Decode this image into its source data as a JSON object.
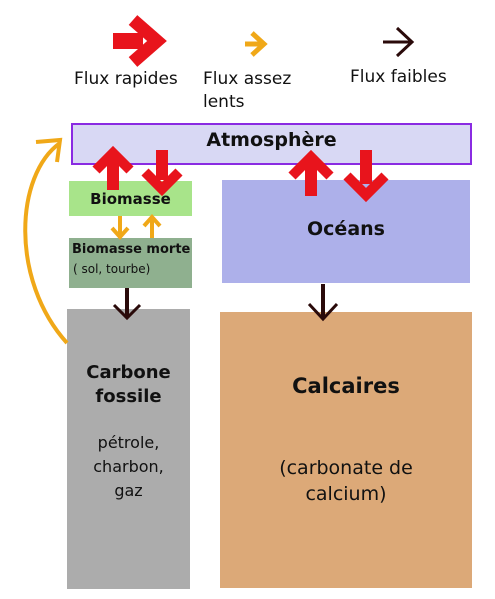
{
  "legend": {
    "fast": {
      "label": "Flux rapides",
      "color": "#e8141c"
    },
    "medium": {
      "label_line1": "Flux assez",
      "label_line2": "lents",
      "color": "#f0a818"
    },
    "slow": {
      "label": "Flux faibles",
      "color": "#2a0a0a"
    }
  },
  "boxes": {
    "atmosphere": {
      "title": "Atmosphère",
      "color": "#d8d8f4",
      "border": "#8a2be2"
    },
    "biomasse": {
      "title": "Biomasse",
      "color": "#a8e48a"
    },
    "biomasse_morte": {
      "title": "Biomasse morte",
      "subtitle": "( sol, tourbe)",
      "color": "#8fb08f"
    },
    "oceans": {
      "title": "Océans",
      "color": "#adb0ea"
    },
    "carbone_fossile": {
      "title_line1": "Carbone",
      "title_line2": "fossile",
      "sub_line1": "pétrole,",
      "sub_line2": "charbon,",
      "sub_line3": "gaz",
      "color": "#acacac"
    },
    "calcaires": {
      "title": "Calcaires",
      "sub_line1": "(carbonate de",
      "sub_line2": "calcium)",
      "color": "#dca978"
    }
  }
}
